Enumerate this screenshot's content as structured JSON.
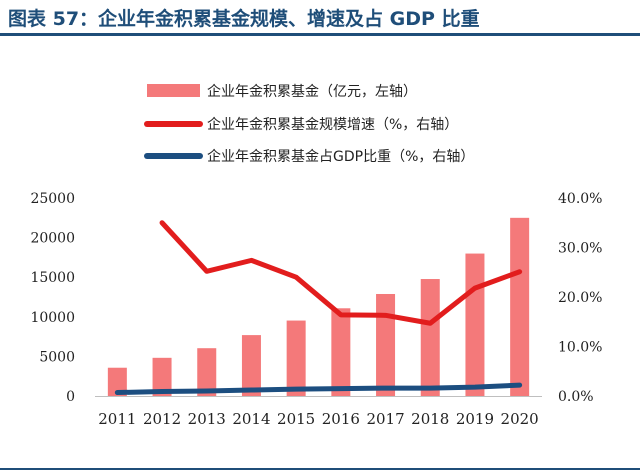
{
  "title": "图表 57：企业年金积累基金规模、增速及占 GDP 比重",
  "colors": {
    "bar": "#f4797a",
    "growth": "#e21d1d",
    "gdp": "#1c4e80",
    "title": "#1f4e79"
  },
  "chart_data": {
    "type": "bar",
    "categories": [
      "2011",
      "2012",
      "2013",
      "2014",
      "2015",
      "2016",
      "2017",
      "2018",
      "2019",
      "2020"
    ],
    "y_left": {
      "ylim": [
        0,
        25000
      ],
      "ticks": [
        "0",
        "5000",
        "10000",
        "15000",
        "20000",
        "25000"
      ]
    },
    "y_right": {
      "ylim": [
        0,
        40
      ],
      "ticks": [
        "0.0%",
        "10.0%",
        "20.0%",
        "30.0%",
        "40.0%"
      ]
    },
    "series": [
      {
        "name": "企业年金积累基金（亿元，左轴）",
        "type": "bar",
        "axis": "left",
        "values": [
          3570,
          4821,
          6035,
          7689,
          9526,
          11075,
          12880,
          14770,
          17985,
          22497
        ]
      },
      {
        "name": "企业年金积累基金规模增速（%，右轴）",
        "type": "line",
        "axis": "right",
        "values": [
          null,
          35.0,
          25.2,
          27.4,
          24.0,
          16.4,
          16.3,
          14.7,
          21.8,
          25.1
        ]
      },
      {
        "name": "企业年金积累基金占GDP比重（%，右轴）",
        "type": "line",
        "axis": "right",
        "values": [
          0.7,
          0.9,
          1.0,
          1.2,
          1.4,
          1.5,
          1.6,
          1.6,
          1.8,
          2.2
        ]
      }
    ],
    "legend_position": "top-center",
    "grid": false
  }
}
